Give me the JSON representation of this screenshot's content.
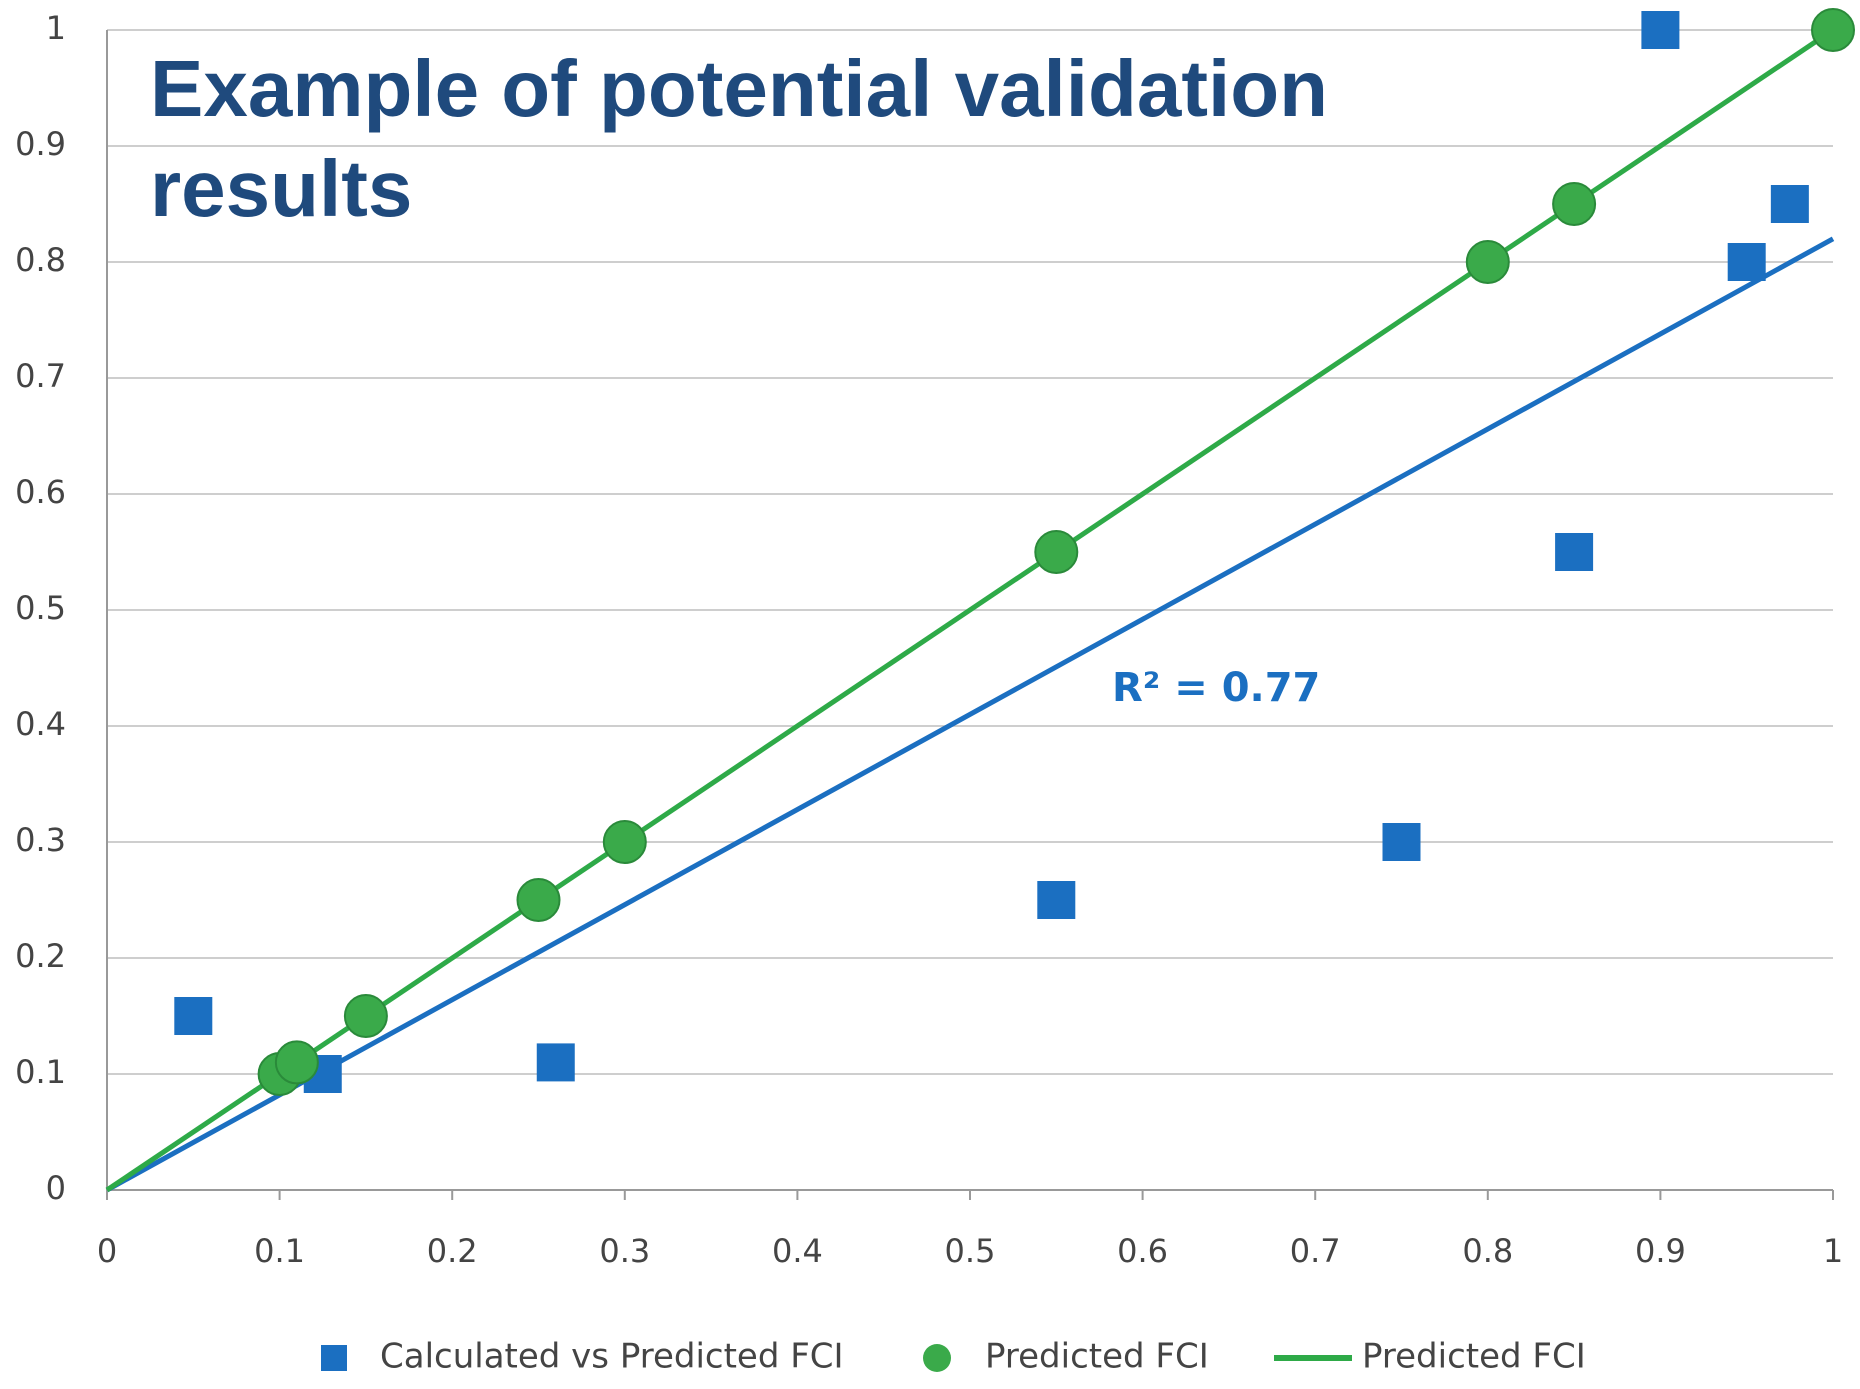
{
  "chart_data": {
    "type": "scatter",
    "title": "Example of potential validation results",
    "xlim": [
      0,
      1
    ],
    "ylim": [
      0,
      1
    ],
    "xticks": [
      0,
      0.1,
      0.2,
      0.3,
      0.4,
      0.5,
      0.6,
      0.7,
      0.8,
      0.9,
      1
    ],
    "yticks": [
      0,
      0.1,
      0.2,
      0.3,
      0.4,
      0.5,
      0.6,
      0.7,
      0.8,
      0.9,
      1
    ],
    "grid": true,
    "legend": "bottom",
    "series": [
      {
        "name": "Calculated vs Predicted FCI",
        "color": "#1b6fc1",
        "marker": "square",
        "x": [
          0.05,
          0.125,
          0.26,
          0.55,
          0.75,
          0.85,
          0.9,
          0.95,
          0.975
        ],
        "values": [
          0.15,
          0.1,
          0.11,
          0.25,
          0.3,
          0.55,
          1,
          0.8,
          0.85
        ]
      },
      {
        "name": "Predicted FCI",
        "color": "#3aaa4a",
        "marker": "circle",
        "x": [
          0.1,
          0.11,
          0.15,
          0.25,
          0.3,
          0.55,
          0.8,
          0.85,
          1
        ],
        "values": [
          0.1,
          0.11,
          0.15,
          0.25,
          0.3,
          0.55,
          0.8,
          0.85,
          1
        ]
      },
      {
        "name": "Predicted FCI",
        "color": "#2eaa48",
        "marker": "line",
        "x": [
          0,
          1
        ],
        "values": [
          0,
          1
        ]
      },
      {
        "color": "#1b6fc1",
        "marker": "line",
        "x": [
          0,
          1
        ],
        "values": [
          0,
          0.82
        ]
      }
    ],
    "annotations": [
      "R² = 0.77"
    ]
  }
}
